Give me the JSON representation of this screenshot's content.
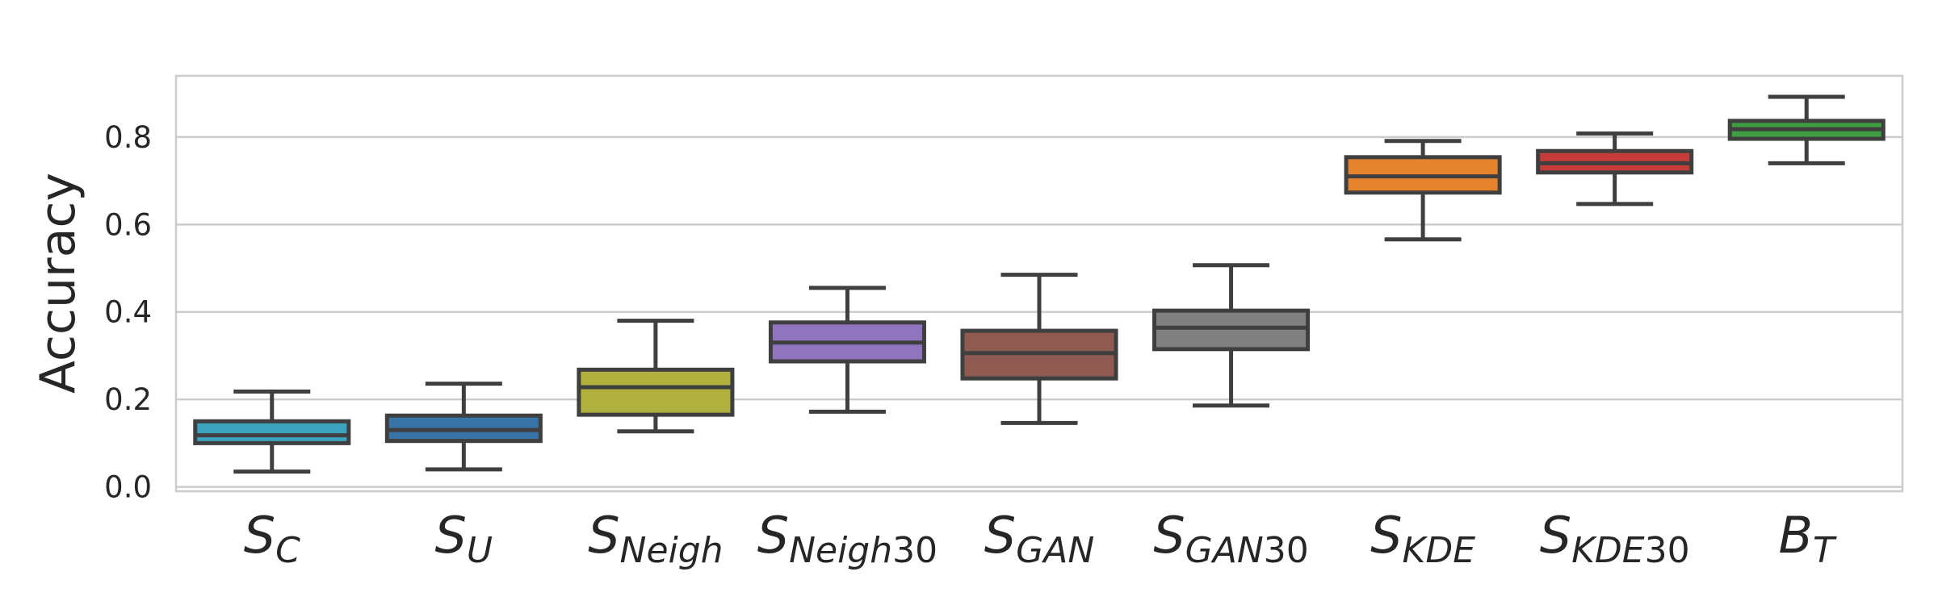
{
  "chart_data": {
    "type": "box",
    "title": "",
    "xlabel": "",
    "ylabel": "Accuracy",
    "ylim": [
      -0.01,
      0.94
    ],
    "yticks": [
      "0.0",
      "0.2",
      "0.4",
      "0.6",
      "0.8"
    ],
    "ytick_values": [
      0.0,
      0.2,
      0.4,
      0.6,
      0.8
    ],
    "grid": true,
    "legend": "none",
    "categories": [
      {
        "main": "S",
        "sub": "C",
        "sub_italic": "C",
        "sub_plain": ""
      },
      {
        "main": "S",
        "sub": "U",
        "sub_italic": "U",
        "sub_plain": ""
      },
      {
        "main": "S",
        "sub": "Neigh",
        "sub_italic": "Neigh",
        "sub_plain": ""
      },
      {
        "main": "S",
        "sub": "Neigh30",
        "sub_italic": "Neigh",
        "sub_plain": "30"
      },
      {
        "main": "S",
        "sub": "GAN",
        "sub_italic": "GAN",
        "sub_plain": ""
      },
      {
        "main": "S",
        "sub": "GAN30",
        "sub_italic": "GAN",
        "sub_plain": "30"
      },
      {
        "main": "S",
        "sub": "KDE",
        "sub_italic": "KDE",
        "sub_plain": ""
      },
      {
        "main": "S",
        "sub": "KDE30",
        "sub_italic": "KDE",
        "sub_plain": "30"
      },
      {
        "main": "B",
        "sub": "T",
        "sub_italic": "T",
        "sub_plain": ""
      }
    ],
    "boxes": [
      {
        "category": "S_C",
        "min": 0.035,
        "q1": 0.1,
        "median": 0.118,
        "q3": 0.15,
        "max": 0.218,
        "color": "#3ba3bd"
      },
      {
        "category": "S_U",
        "min": 0.04,
        "q1": 0.105,
        "median": 0.13,
        "q3": 0.163,
        "max": 0.236,
        "color": "#3774a5"
      },
      {
        "category": "S_Neigh",
        "min": 0.127,
        "q1": 0.165,
        "median": 0.228,
        "q3": 0.268,
        "max": 0.38,
        "color": "#b0b03e"
      },
      {
        "category": "S_Neigh30",
        "min": 0.172,
        "q1": 0.287,
        "median": 0.33,
        "q3": 0.376,
        "max": 0.455,
        "color": "#9074bd"
      },
      {
        "category": "S_GAN",
        "min": 0.146,
        "q1": 0.248,
        "median": 0.306,
        "q3": 0.357,
        "max": 0.485,
        "color": "#8e5a51"
      },
      {
        "category": "S_GAN30",
        "min": 0.186,
        "q1": 0.315,
        "median": 0.364,
        "q3": 0.403,
        "max": 0.507,
        "color": "#808080"
      },
      {
        "category": "S_KDE",
        "min": 0.566,
        "q1": 0.673,
        "median": 0.71,
        "q3": 0.754,
        "max": 0.791,
        "color": "#e5832d"
      },
      {
        "category": "S_KDE30",
        "min": 0.647,
        "q1": 0.719,
        "median": 0.74,
        "q3": 0.768,
        "max": 0.808,
        "color": "#c63c38"
      },
      {
        "category": "B_T",
        "min": 0.74,
        "q1": 0.796,
        "median": 0.818,
        "q3": 0.837,
        "max": 0.892,
        "color": "#3f9e42"
      }
    ]
  }
}
